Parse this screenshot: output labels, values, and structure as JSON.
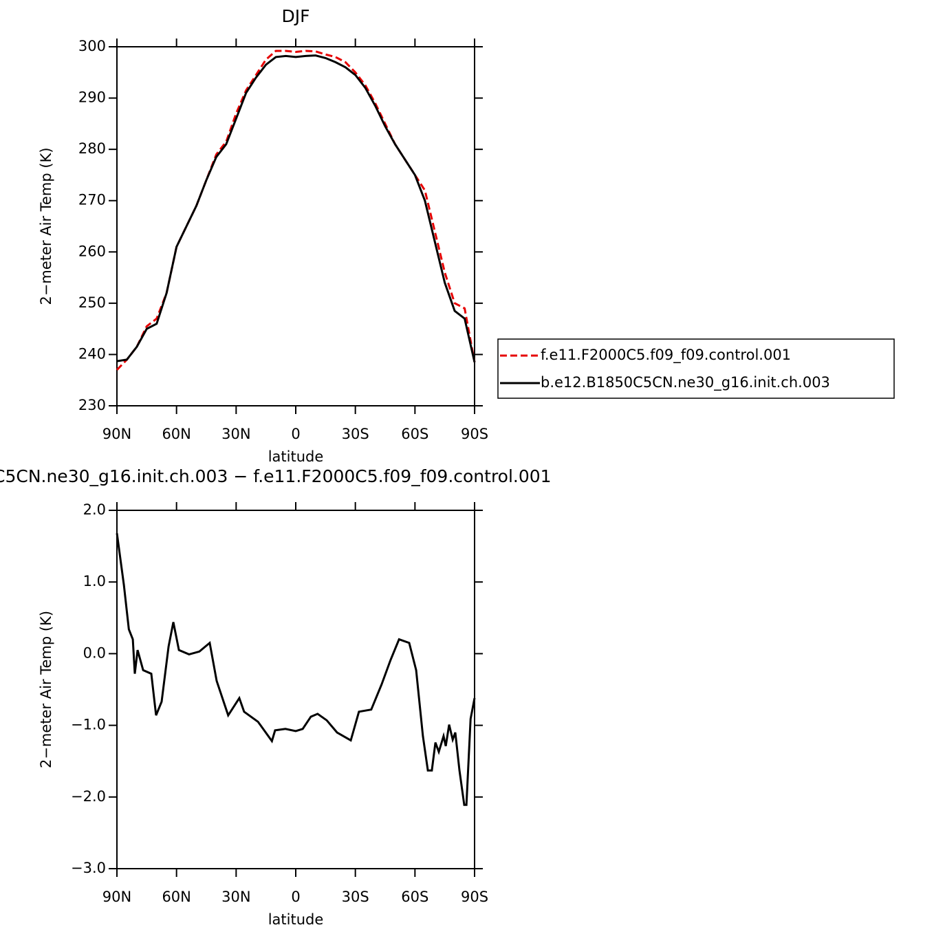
{
  "chart_data": [
    {
      "type": "line",
      "title": "DJF",
      "xlabel": "latitude",
      "ylabel": "2−meter Air Temp (K)",
      "x": [
        90,
        85,
        80,
        75,
        70,
        65,
        60,
        55,
        50,
        45,
        40,
        35,
        30,
        25,
        20,
        15,
        10,
        5,
        0,
        -5,
        -10,
        -15,
        -20,
        -25,
        -30,
        -35,
        -40,
        -45,
        -50,
        -55,
        -60,
        -65,
        -70,
        -75,
        -80,
        -85,
        -90
      ],
      "series": [
        {
          "name": "f.e11.F2000C5.f09_f09.control.001",
          "color": "#e60000",
          "dash": true,
          "values": [
            237,
            239,
            241.5,
            245.5,
            247,
            252,
            261,
            265,
            269,
            274,
            279,
            281.5,
            287,
            291.5,
            294.5,
            297.5,
            299.2,
            299.2,
            299,
            299.2,
            299.1,
            298.5,
            298,
            297,
            295,
            292.5,
            289,
            285,
            281,
            278,
            275,
            272,
            264,
            256,
            250,
            249,
            238.5
          ]
        },
        {
          "name": "b.e12.B1850C5CN.ne30_g16.init.ch.003",
          "color": "#000000",
          "dash": false,
          "values": [
            238.7,
            239,
            241.5,
            245,
            246,
            252,
            261,
            265,
            269,
            274,
            278.5,
            281,
            286,
            291,
            294,
            296.5,
            298,
            298.2,
            298,
            298.2,
            298.3,
            297.8,
            297,
            296,
            294.5,
            292,
            288.5,
            284.5,
            281,
            278,
            275,
            270,
            262,
            254,
            248.5,
            247,
            238.5
          ]
        }
      ],
      "xlim": [
        90,
        -90
      ],
      "xticks": [
        {
          "value": 90,
          "label": "90N"
        },
        {
          "value": 60,
          "label": "60N"
        },
        {
          "value": 30,
          "label": "30N"
        },
        0,
        {
          "value": -30,
          "label": "30S"
        },
        {
          "value": -60,
          "label": "60S"
        },
        {
          "value": -90,
          "label": "90S"
        }
      ],
      "ylim": [
        230,
        300
      ],
      "yticks": [
        230,
        240,
        250,
        260,
        270,
        280,
        290,
        300
      ]
    },
    {
      "type": "line",
      "title": "C5CN.ne30_g16.init.ch.003 − f.e11.F2000C5.f09_f09.control.001",
      "xlabel": "latitude",
      "ylabel": "2−meter Air Temp (K)",
      "x": [
        90,
        86.5,
        84,
        82,
        81,
        79.6,
        76.8,
        72.7,
        70.3,
        67.5,
        64,
        61.6,
        58.8,
        53.7,
        48.5,
        43.3,
        39.8,
        36.3,
        34,
        28.4,
        26,
        19,
        12,
        10.4,
        5.2,
        0,
        -3.5,
        -7.6,
        -11,
        -15.6,
        -20.8,
        -27.7,
        -31.8,
        -38,
        -43.2,
        -47.7,
        -52,
        -57.1,
        -60.6,
        -64,
        -66.5,
        -68.5,
        -70.3,
        -72,
        -74.4,
        -75.5,
        -77.2,
        -79,
        -80.3,
        -82.4,
        -84.8,
        -85.9,
        -88,
        -90
      ],
      "values": [
        1.68,
        0.96,
        0.34,
        0.2,
        -0.28,
        0.05,
        -0.23,
        -0.28,
        -0.86,
        -0.67,
        0.1,
        0.44,
        0.05,
        -0.01,
        0.03,
        0.15,
        -0.38,
        -0.67,
        -0.86,
        -0.62,
        -0.81,
        -0.95,
        -1.22,
        -1.07,
        -1.05,
        -1.08,
        -1.05,
        -0.88,
        -0.84,
        -0.93,
        -1.1,
        -1.21,
        -0.81,
        -0.78,
        -0.43,
        -0.09,
        0.2,
        0.15,
        -0.23,
        -1.15,
        -1.63,
        -1.63,
        -1.24,
        -1.37,
        -1.15,
        -1.29,
        -0.99,
        -1.2,
        -1.1,
        -1.63,
        -2.11,
        -2.11,
        -0.91,
        -0.62
      ],
      "color": "#000000",
      "xlim": [
        90,
        -90
      ],
      "xticks": [
        {
          "value": 90,
          "label": "90N"
        },
        {
          "value": 60,
          "label": "60N"
        },
        {
          "value": 30,
          "label": "30N"
        },
        0,
        {
          "value": -30,
          "label": "30S"
        },
        {
          "value": -60,
          "label": "60S"
        },
        {
          "value": -90,
          "label": "90S"
        }
      ],
      "ylim": [
        -3,
        2
      ],
      "yticks": [
        {
          "value": -3,
          "label": "−3.0"
        },
        {
          "value": -2,
          "label": "−2.0"
        },
        {
          "value": -1,
          "label": "−1.0"
        },
        {
          "value": 0,
          "label": "0.0"
        },
        {
          "value": 1,
          "label": "1.0"
        },
        {
          "value": 2,
          "label": "2.0"
        }
      ]
    }
  ]
}
